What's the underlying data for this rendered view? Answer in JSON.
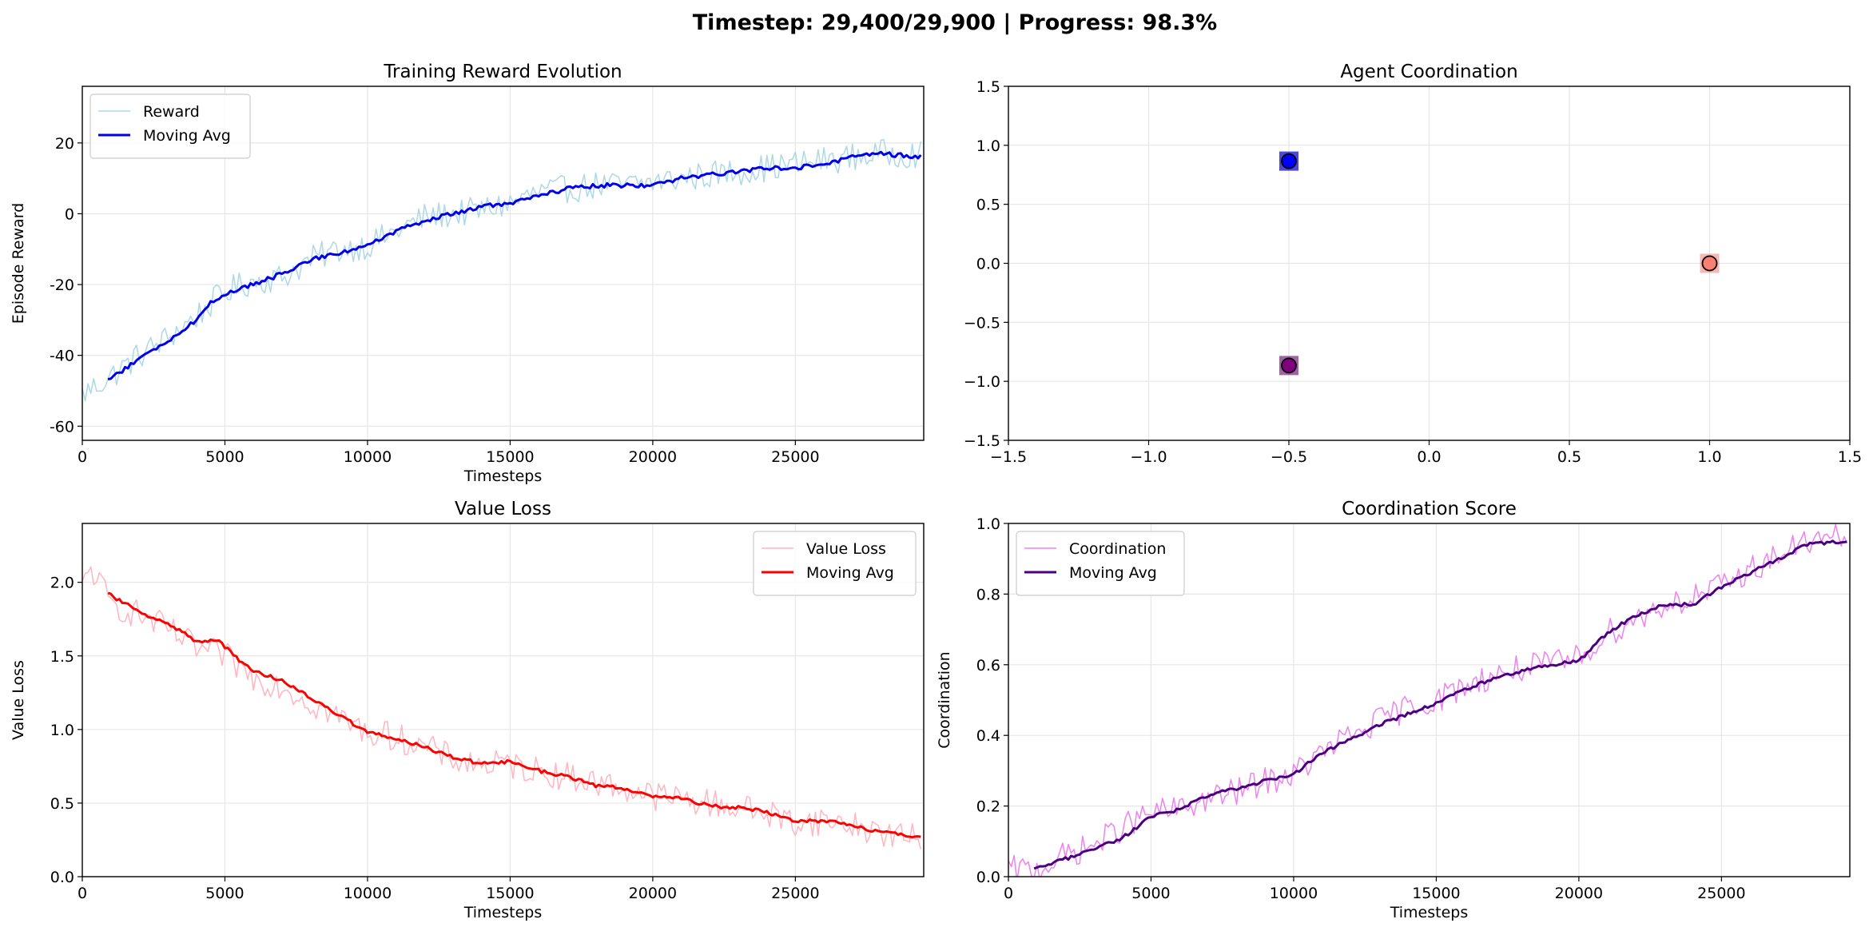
{
  "figure": {
    "suptitle": "Timestep: 29,400/29,900 | Progress: 98.3%"
  },
  "chart_data": [
    {
      "id": "reward",
      "type": "line",
      "title": "Training Reward Evolution",
      "xlabel": "Timesteps",
      "ylabel": "Episode Reward",
      "xlim": [
        0,
        29500
      ],
      "ylim": [
        -64,
        36
      ],
      "xticks": [
        0,
        5000,
        10000,
        15000,
        20000,
        25000
      ],
      "yticks": [
        -60,
        -40,
        -20,
        0,
        20
      ],
      "grid": true,
      "legend": "upper-left",
      "series": [
        {
          "name": "Reward",
          "color": "#add8e6",
          "width": 1.5,
          "x_start": 0,
          "x_step": 100,
          "noise": 4,
          "anchors": [
            [
              0,
              -51
            ],
            [
              1000,
              -46
            ],
            [
              2000,
              -40
            ],
            [
              3000,
              -35
            ],
            [
              4000,
              -29
            ],
            [
              5000,
              -22
            ],
            [
              6000,
              -19
            ],
            [
              7000,
              -18
            ],
            [
              8000,
              -13
            ],
            [
              9000,
              -10
            ],
            [
              10000,
              -9
            ],
            [
              11000,
              -5
            ],
            [
              12000,
              -1
            ],
            [
              13000,
              0
            ],
            [
              14000,
              1
            ],
            [
              15000,
              3
            ],
            [
              16000,
              6
            ],
            [
              17000,
              7
            ],
            [
              18000,
              8
            ],
            [
              19000,
              8
            ],
            [
              20000,
              9
            ],
            [
              21000,
              10
            ],
            [
              22000,
              11
            ],
            [
              23000,
              12
            ],
            [
              24000,
              13
            ],
            [
              25000,
              14
            ],
            [
              26000,
              15
            ],
            [
              27000,
              16
            ],
            [
              28000,
              17
            ],
            [
              29400,
              17
            ]
          ]
        },
        {
          "name": "Moving Avg",
          "color": "#0000ee",
          "width": 3,
          "x_start": 900,
          "x_step": 100,
          "noise": 0.6,
          "anchors": [
            [
              900,
              -47
            ],
            [
              2000,
              -41
            ],
            [
              3000,
              -36
            ],
            [
              4000,
              -30
            ],
            [
              4500,
              -25
            ],
            [
              5000,
              -23
            ],
            [
              5500,
              -21
            ],
            [
              6000,
              -20
            ],
            [
              7000,
              -17
            ],
            [
              8000,
              -13
            ],
            [
              9000,
              -11
            ],
            [
              10000,
              -9
            ],
            [
              11000,
              -5
            ],
            [
              12000,
              -2
            ],
            [
              13000,
              0
            ],
            [
              14000,
              2
            ],
            [
              15000,
              3
            ],
            [
              16000,
              5
            ],
            [
              17000,
              7
            ],
            [
              18000,
              8
            ],
            [
              19000,
              8
            ],
            [
              20000,
              8
            ],
            [
              21000,
              10
            ],
            [
              22000,
              11
            ],
            [
              23000,
              12
            ],
            [
              24000,
              13
            ],
            [
              25000,
              13
            ],
            [
              26000,
              14
            ],
            [
              27000,
              16
            ],
            [
              28000,
              17
            ],
            [
              29400,
              16
            ]
          ]
        }
      ]
    },
    {
      "id": "coordination-map",
      "type": "scatter",
      "title": "Agent Coordination",
      "xlabel": "",
      "ylabel": "",
      "xlim": [
        -1.5,
        1.5
      ],
      "ylim": [
        -1.5,
        1.5
      ],
      "xticks": [
        -1.5,
        -1.0,
        -0.5,
        0.0,
        0.5,
        1.0,
        1.5
      ],
      "yticks": [
        -1.5,
        -1.0,
        -0.5,
        0.0,
        0.5,
        1.0,
        1.5
      ],
      "xtick_labels": [
        "−1.5",
        "−1.0",
        "−0.5",
        "0.0",
        "0.5",
        "1.0",
        "1.5"
      ],
      "ytick_labels": [
        "−1.5",
        "−1.0",
        "−0.5",
        "0.0",
        "0.5",
        "1.0",
        "1.5"
      ],
      "grid": true,
      "agents": [
        {
          "x": -0.5,
          "y": 0.866,
          "color": "#0000ff",
          "square_color": "#1d1dcc"
        },
        {
          "x": 1.0,
          "y": 0.0,
          "color": "#fa8072",
          "square_color": "#f4a6a0"
        },
        {
          "x": -0.5,
          "y": -0.866,
          "color": "#800080",
          "square_color": "#8a3c8a"
        }
      ]
    },
    {
      "id": "value-loss",
      "type": "line",
      "title": "Value Loss",
      "xlabel": "Timesteps",
      "ylabel": "Value Loss",
      "xlim": [
        0,
        29500
      ],
      "ylim": [
        0,
        2.4
      ],
      "xticks": [
        0,
        5000,
        10000,
        15000,
        20000,
        25000
      ],
      "yticks": [
        0.0,
        0.5,
        1.0,
        1.5,
        2.0
      ],
      "ytick_labels": [
        "0.0",
        "0.5",
        "1.0",
        "1.5",
        "2.0"
      ],
      "grid": true,
      "legend": "upper-right",
      "series": [
        {
          "name": "Value Loss",
          "color": "#ffb6c1",
          "width": 1.5,
          "x_start": 0,
          "x_step": 100,
          "noise": 0.1,
          "anchors": [
            [
              0,
              1.95
            ],
            [
              300,
              2.1
            ],
            [
              1000,
              1.85
            ],
            [
              2000,
              1.78
            ],
            [
              3000,
              1.68
            ],
            [
              4000,
              1.55
            ],
            [
              5000,
              1.5
            ],
            [
              6000,
              1.35
            ],
            [
              7000,
              1.3
            ],
            [
              8000,
              1.18
            ],
            [
              9000,
              1.08
            ],
            [
              10000,
              0.98
            ],
            [
              11000,
              0.95
            ],
            [
              12000,
              0.88
            ],
            [
              13000,
              0.8
            ],
            [
              14000,
              0.76
            ],
            [
              15000,
              0.76
            ],
            [
              16000,
              0.72
            ],
            [
              17000,
              0.68
            ],
            [
              18000,
              0.64
            ],
            [
              19000,
              0.6
            ],
            [
              20000,
              0.55
            ],
            [
              21000,
              0.53
            ],
            [
              22000,
              0.5
            ],
            [
              23000,
              0.47
            ],
            [
              24000,
              0.43
            ],
            [
              25000,
              0.37
            ],
            [
              26000,
              0.38
            ],
            [
              27000,
              0.35
            ],
            [
              28000,
              0.3
            ],
            [
              29400,
              0.25
            ]
          ]
        },
        {
          "name": "Moving Avg",
          "color": "#ff0000",
          "width": 3,
          "x_start": 900,
          "x_step": 100,
          "noise": 0.012,
          "anchors": [
            [
              900,
              1.92
            ],
            [
              1500,
              1.86
            ],
            [
              2000,
              1.8
            ],
            [
              3000,
              1.72
            ],
            [
              4000,
              1.6
            ],
            [
              4800,
              1.6
            ],
            [
              5500,
              1.47
            ],
            [
              6000,
              1.4
            ],
            [
              7000,
              1.33
            ],
            [
              8000,
              1.22
            ],
            [
              9000,
              1.1
            ],
            [
              10000,
              0.98
            ],
            [
              11000,
              0.94
            ],
            [
              12000,
              0.88
            ],
            [
              13000,
              0.81
            ],
            [
              14000,
              0.77
            ],
            [
              15000,
              0.78
            ],
            [
              16000,
              0.72
            ],
            [
              17000,
              0.68
            ],
            [
              18000,
              0.62
            ],
            [
              19000,
              0.6
            ],
            [
              20000,
              0.55
            ],
            [
              21000,
              0.53
            ],
            [
              22000,
              0.48
            ],
            [
              23000,
              0.47
            ],
            [
              24000,
              0.44
            ],
            [
              25000,
              0.38
            ],
            [
              26000,
              0.38
            ],
            [
              27000,
              0.35
            ],
            [
              28000,
              0.3
            ],
            [
              29400,
              0.27
            ]
          ]
        }
      ]
    },
    {
      "id": "coordination-score",
      "type": "line",
      "title": "Coordination Score",
      "xlabel": "Timesteps",
      "ylabel": "Coordination",
      "xlim": [
        0,
        29500
      ],
      "ylim": [
        0,
        1.0
      ],
      "xticks": [
        0,
        5000,
        10000,
        15000,
        20000,
        25000
      ],
      "yticks": [
        0.0,
        0.2,
        0.4,
        0.6,
        0.8,
        1.0
      ],
      "ytick_labels": [
        "0.0",
        "0.2",
        "0.4",
        "0.6",
        "0.8",
        "1.0"
      ],
      "grid": true,
      "legend": "upper-left",
      "series": [
        {
          "name": "Coordination",
          "color": "#ee82ee",
          "width": 1.5,
          "x_start": 0,
          "x_step": 100,
          "noise": 0.04,
          "anchors": [
            [
              0,
              0.02
            ],
            [
              1000,
              0.02
            ],
            [
              2000,
              0.06
            ],
            [
              3000,
              0.09
            ],
            [
              4000,
              0.14
            ],
            [
              5000,
              0.18
            ],
            [
              6000,
              0.19
            ],
            [
              7000,
              0.22
            ],
            [
              8000,
              0.24
            ],
            [
              9000,
              0.27
            ],
            [
              10000,
              0.29
            ],
            [
              11000,
              0.35
            ],
            [
              12000,
              0.4
            ],
            [
              13000,
              0.44
            ],
            [
              14000,
              0.48
            ],
            [
              15000,
              0.5
            ],
            [
              16000,
              0.54
            ],
            [
              17000,
              0.57
            ],
            [
              18000,
              0.59
            ],
            [
              19000,
              0.6
            ],
            [
              20000,
              0.62
            ],
            [
              21000,
              0.69
            ],
            [
              22000,
              0.73
            ],
            [
              23000,
              0.77
            ],
            [
              24000,
              0.79
            ],
            [
              25000,
              0.82
            ],
            [
              26000,
              0.87
            ],
            [
              27000,
              0.91
            ],
            [
              28000,
              0.95
            ],
            [
              29400,
              0.96
            ]
          ]
        },
        {
          "name": "Moving Avg",
          "color": "#4b0082",
          "width": 3,
          "x_start": 900,
          "x_step": 100,
          "noise": 0.005,
          "anchors": [
            [
              900,
              0.02
            ],
            [
              2000,
              0.05
            ],
            [
              3000,
              0.08
            ],
            [
              4000,
              0.11
            ],
            [
              5000,
              0.17
            ],
            [
              6000,
              0.19
            ],
            [
              7000,
              0.23
            ],
            [
              8000,
              0.25
            ],
            [
              9000,
              0.27
            ],
            [
              10000,
              0.29
            ],
            [
              11000,
              0.35
            ],
            [
              12000,
              0.39
            ],
            [
              13000,
              0.43
            ],
            [
              14000,
              0.46
            ],
            [
              15000,
              0.49
            ],
            [
              16000,
              0.53
            ],
            [
              17000,
              0.56
            ],
            [
              18000,
              0.58
            ],
            [
              19000,
              0.6
            ],
            [
              20000,
              0.61
            ],
            [
              21000,
              0.69
            ],
            [
              22000,
              0.74
            ],
            [
              23000,
              0.77
            ],
            [
              24000,
              0.77
            ],
            [
              25000,
              0.82
            ],
            [
              26000,
              0.86
            ],
            [
              27000,
              0.9
            ],
            [
              28000,
              0.94
            ],
            [
              29400,
              0.95
            ]
          ]
        }
      ]
    }
  ]
}
